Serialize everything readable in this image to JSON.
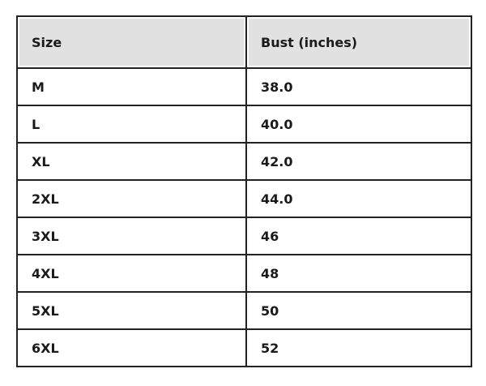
{
  "table": {
    "headers": [
      "Size",
      "Bust (inches)"
    ],
    "rows": [
      [
        "M",
        "38.0"
      ],
      [
        "L",
        "40.0"
      ],
      [
        "XL",
        "42.0"
      ],
      [
        "2XL",
        "44.0"
      ],
      [
        "3XL",
        "46"
      ],
      [
        "4XL",
        "48"
      ],
      [
        "5XL",
        "50"
      ],
      [
        "6XL",
        "52"
      ]
    ]
  },
  "colors": {
    "header_bg": "#e1e1e1",
    "border": "#222222"
  }
}
